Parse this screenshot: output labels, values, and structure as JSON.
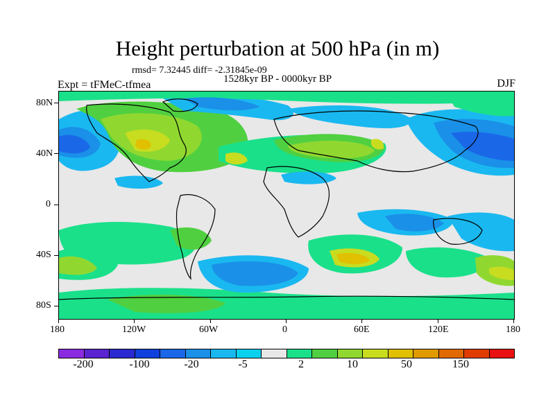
{
  "figure": {
    "title": "Height perturbation at 500 hPa (in m)",
    "stats": "rmsd= 7.32445 diff= -2.31845e-09",
    "period": "1528kyr BP - 0000kyr BP",
    "experiment": "Expt = tFMeC-tfmea",
    "season": "DJF"
  },
  "axes": {
    "y_ticks": [
      "80N",
      "40N",
      "0",
      "40S",
      "80S"
    ],
    "x_ticks": [
      "180",
      "120W",
      "60W",
      "0",
      "60E",
      "120E",
      "180"
    ]
  },
  "colorbar": {
    "colors": [
      "#8a2be2",
      "#5a24d0",
      "#2a2ad0",
      "#1040dc",
      "#1a68e8",
      "#1a90e8",
      "#1ab8f0",
      "#0ad0f0",
      "#e8e8e8",
      "#1ae08a",
      "#50d040",
      "#90d830",
      "#c8dc20",
      "#e0c000",
      "#e09a00",
      "#e06a00",
      "#e03c00",
      "#e81010"
    ],
    "labels": [
      "-200",
      "-100",
      "-20",
      "-5",
      "2",
      "10",
      "50",
      "150"
    ]
  },
  "palette": {
    "neutral": "#e8e8e8",
    "blue_dark": "#1a68e8",
    "blue_mid": "#1a90e8",
    "cyan": "#1ab8f0",
    "cyan_light": "#0ad0f0",
    "green": "#1ae08a",
    "green2": "#50d040",
    "yellow_green": "#90d830",
    "yellow": "#c8dc20",
    "gold": "#e0c000",
    "orange": "#e09a00"
  }
}
